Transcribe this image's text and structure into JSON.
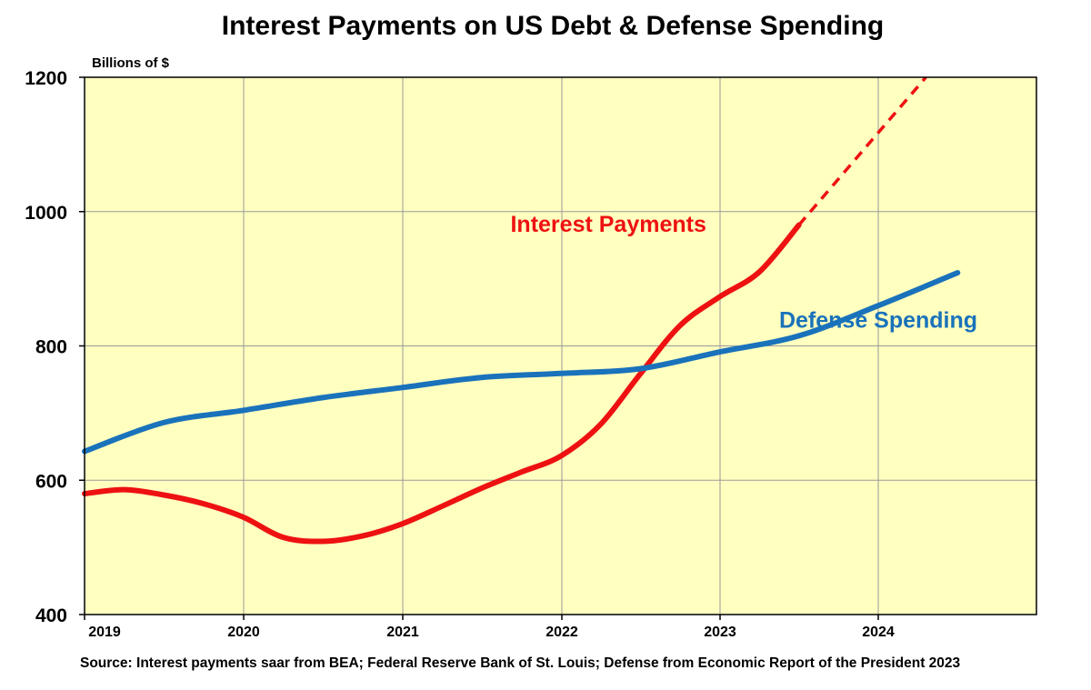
{
  "chart_data": {
    "type": "line",
    "title": "Interest Payments on US Debt & Defense Spending",
    "ylabel": "Billions of $",
    "xlabel": "",
    "ylim": [
      400,
      1200
    ],
    "xlim": [
      2019,
      2025
    ],
    "y_ticks": [
      "400",
      "600",
      "800",
      "1000",
      "1200"
    ],
    "x_ticks": [
      "2019",
      "2020",
      "2021",
      "2022",
      "2023",
      "2024"
    ],
    "grid": true,
    "background_color": "#ffffc0",
    "series": [
      {
        "name": "Interest Payments",
        "color": "#ee1111",
        "style": "solid",
        "points": [
          [
            2019.0,
            580
          ],
          [
            2019.25,
            586
          ],
          [
            2019.5,
            578
          ],
          [
            2019.75,
            565
          ],
          [
            2020.0,
            545
          ],
          [
            2020.25,
            515
          ],
          [
            2020.5,
            509
          ],
          [
            2020.75,
            517
          ],
          [
            2021.0,
            535
          ],
          [
            2021.25,
            561
          ],
          [
            2021.5,
            588
          ],
          [
            2021.75,
            612
          ],
          [
            2022.0,
            636
          ],
          [
            2022.25,
            683
          ],
          [
            2022.5,
            758
          ],
          [
            2022.75,
            830
          ],
          [
            2023.0,
            873
          ],
          [
            2023.25,
            910
          ],
          [
            2023.5,
            980
          ]
        ]
      },
      {
        "name": "Interest Payments (projected)",
        "color": "#ee1111",
        "style": "dashed",
        "points": [
          [
            2023.5,
            980
          ],
          [
            2024.3,
            1200
          ]
        ]
      },
      {
        "name": "Defense Spending",
        "color": "#1a72bb",
        "style": "solid",
        "points": [
          [
            2019.0,
            643
          ],
          [
            2019.5,
            686
          ],
          [
            2020.0,
            704
          ],
          [
            2020.5,
            723
          ],
          [
            2021.0,
            738
          ],
          [
            2021.5,
            753
          ],
          [
            2022.0,
            759
          ],
          [
            2022.5,
            766
          ],
          [
            2023.0,
            791
          ],
          [
            2023.5,
            815
          ],
          [
            2024.0,
            860
          ],
          [
            2024.5,
            909
          ]
        ]
      }
    ],
    "annotations": [
      {
        "text": "Interest Payments",
        "color": "#ee1111",
        "anchor": [
          2022.3,
          970
        ]
      },
      {
        "text": "Defense Spending",
        "color": "#1a72bb",
        "anchor": [
          2024.0,
          827
        ]
      }
    ]
  },
  "source": "Source: Interest payments saar from BEA; Federal Reserve Bank of St. Louis; Defense from Economic Report of the President 2023"
}
